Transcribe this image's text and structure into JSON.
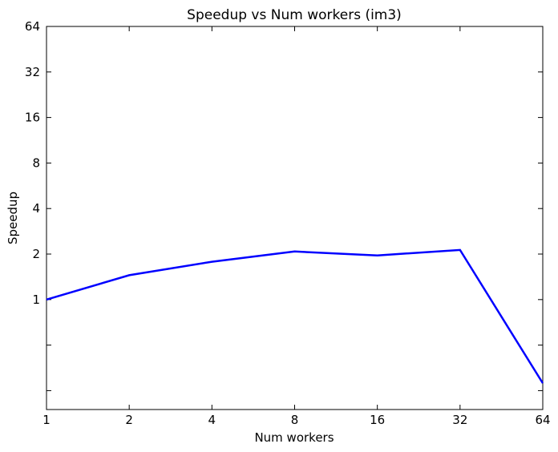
{
  "chart_data": {
    "type": "line",
    "title": "Speedup vs Num workers (im3)",
    "xlabel": "Num workers",
    "ylabel": "Speedup",
    "x_scale": "log2",
    "y_scale": "log2",
    "x_ticks": [
      1,
      2,
      4,
      8,
      16,
      32,
      64
    ],
    "x_tick_labels": [
      "1",
      "2",
      "4",
      "8",
      "16",
      "32",
      "64"
    ],
    "y_ticks": [
      0.25,
      0.5,
      1,
      2,
      4,
      8,
      16,
      32,
      64
    ],
    "y_tick_labels": [
      "",
      "",
      "1",
      "2",
      "4",
      "8",
      "16",
      "32",
      "64"
    ],
    "xlim": [
      1,
      64
    ],
    "ylim": [
      0.1875,
      64
    ],
    "grid": false,
    "series": [
      {
        "color": "#0000ff",
        "x": [
          1,
          2,
          4,
          8,
          16,
          32,
          64
        ],
        "y": [
          1.0,
          1.45,
          1.78,
          2.08,
          1.96,
          2.13,
          0.28
        ]
      }
    ]
  }
}
